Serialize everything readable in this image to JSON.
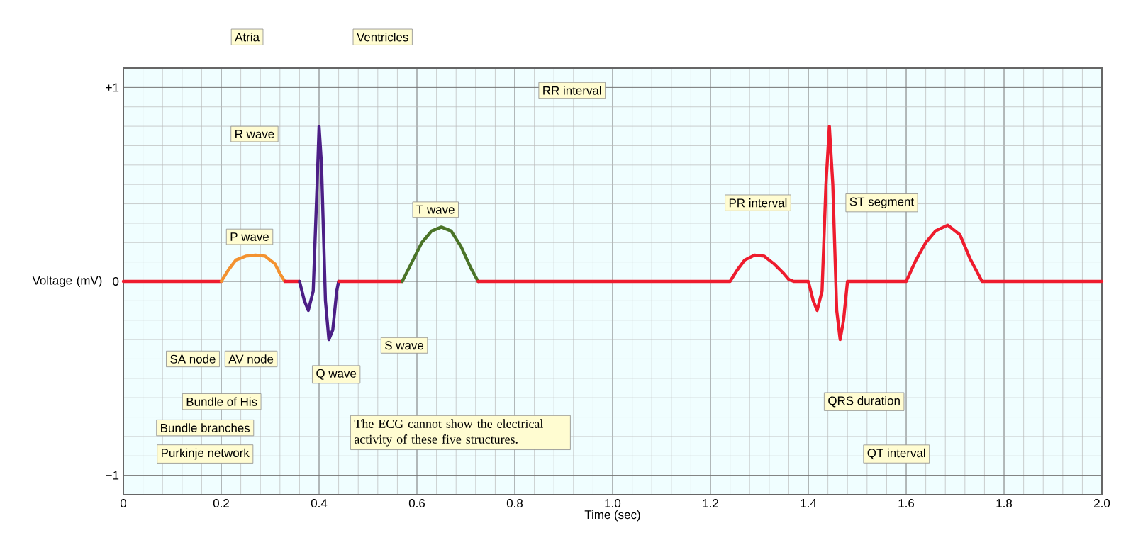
{
  "chart_data": {
    "type": "line",
    "xlabel": "Time (sec)",
    "ylabel": "Voltage (mV)",
    "xlim": [
      0,
      2
    ],
    "ylim": [
      -1.1,
      1.1
    ],
    "xticks": [
      0,
      0.2,
      0.4,
      0.6,
      0.8,
      {
        "value": 1,
        "label": "1.0"
      },
      1.2,
      1.4,
      1.6,
      1.8,
      {
        "value": 2,
        "label": "2.0"
      }
    ],
    "yticks": [
      {
        "value": -1,
        "label": "−1"
      },
      0,
      {
        "value": 1,
        "label": "+1"
      }
    ],
    "grid": true,
    "series": [
      {
        "color": "#ee1c2e",
        "x": [
          0,
          0.2
        ],
        "values": [
          0,
          0
        ]
      },
      {
        "color": "#f39230",
        "x": [
          0.2,
          0.215,
          0.23,
          0.25,
          0.27,
          0.29,
          0.31,
          0.32,
          0.33
        ],
        "values": [
          0,
          0.06,
          0.11,
          0.13,
          0.135,
          0.13,
          0.09,
          0.04,
          0
        ]
      },
      {
        "color": "#ee1c2e",
        "x": [
          0.33,
          0.36
        ],
        "values": [
          0,
          0
        ]
      },
      {
        "color": "#4b1f86",
        "x": [
          0.36,
          0.37,
          0.378,
          0.388,
          0.396,
          0.4,
          0.405,
          0.413,
          0.42,
          0.428,
          0.436,
          0.44
        ],
        "values": [
          0,
          -0.1,
          -0.15,
          -0.05,
          0.5,
          0.8,
          0.6,
          -0.1,
          -0.3,
          -0.25,
          -0.05,
          0
        ]
      },
      {
        "color": "#ee1c2e",
        "x": [
          0.44,
          0.57
        ],
        "values": [
          0,
          0
        ]
      },
      {
        "color": "#4a7428",
        "x": [
          0.57,
          0.59,
          0.61,
          0.63,
          0.65,
          0.67,
          0.69,
          0.71,
          0.725
        ],
        "values": [
          0,
          0.1,
          0.2,
          0.26,
          0.28,
          0.26,
          0.18,
          0.07,
          0
        ]
      },
      {
        "color": "#ee1c2e",
        "x": [
          0.725,
          1.24,
          1.255,
          1.27,
          1.29,
          1.31,
          1.33,
          1.35,
          1.36,
          1.37,
          1.4,
          1.41,
          1.418,
          1.428,
          1.436,
          1.443,
          1.45,
          1.458,
          1.465,
          1.472,
          1.48,
          1.6,
          1.62,
          1.64,
          1.66,
          1.685,
          1.71,
          1.73,
          1.755,
          2.0
        ],
        "values": [
          0,
          0,
          0.06,
          0.11,
          0.135,
          0.13,
          0.09,
          0.04,
          0.01,
          0,
          0,
          -0.1,
          -0.15,
          -0.05,
          0.5,
          0.8,
          0.5,
          -0.15,
          -0.3,
          -0.2,
          0,
          0,
          0.11,
          0.2,
          0.26,
          0.29,
          0.24,
          0.12,
          0,
          0
        ]
      }
    ],
    "annotations": [
      "Atria",
      "Ventricles",
      "RR interval",
      "R wave",
      "P wave",
      "T wave",
      "PR interval",
      "ST segment",
      "SA node",
      "AV node",
      "Q wave",
      "S wave",
      "Bundle of His",
      "Bundle branches",
      "Purkinje network",
      "The ECG cannot show the electrical activity of these five structures.",
      "QRS duration",
      "QT interval"
    ]
  }
}
